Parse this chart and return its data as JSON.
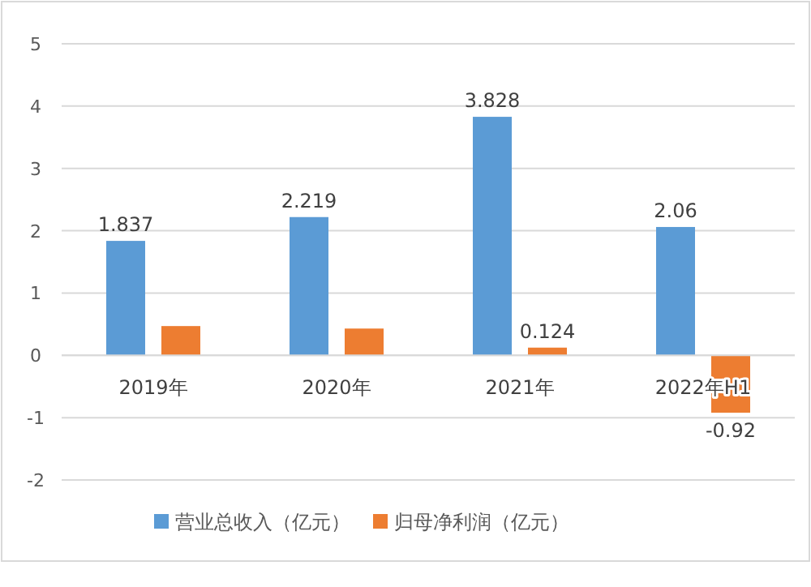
{
  "chart_data": {
    "type": "bar",
    "categories": [
      "2019年",
      "2020年",
      "2021年",
      "2022年H1"
    ],
    "series": [
      {
        "name": "营业总收入（亿元）",
        "color": "#5b9bd5",
        "values": [
          1.837,
          2.219,
          3.828,
          2.06
        ],
        "value_labels": [
          "1.837",
          "2.219",
          "3.828",
          "2.06"
        ]
      },
      {
        "name": "归母净利润（亿元）",
        "color": "#ed7d31",
        "values": [
          0.47,
          0.43,
          0.124,
          -0.92
        ],
        "value_labels": [
          null,
          null,
          "0.124",
          "-0.92"
        ]
      }
    ],
    "ylim": [
      -2,
      5
    ],
    "yticks": [
      -2,
      -1,
      0,
      1,
      2,
      3,
      4,
      5
    ],
    "grid": "y",
    "legend": "bottom"
  }
}
